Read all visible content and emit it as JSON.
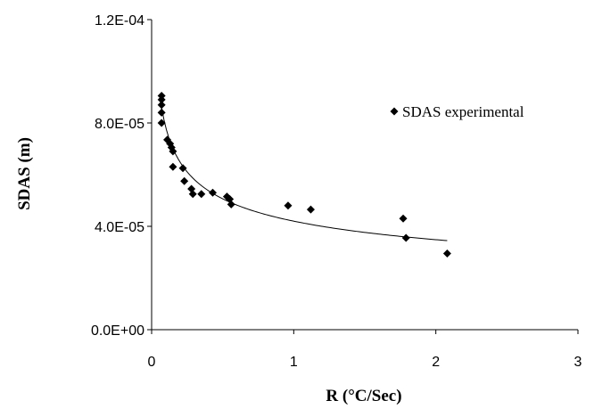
{
  "chart_data": {
    "type": "scatter",
    "xlabel": "R (°C/Sec)",
    "ylabel": "SDAS (m)",
    "xlim": [
      0,
      3
    ],
    "ylim": [
      0,
      0.00012
    ],
    "x_ticks": [
      "0",
      "1",
      "2",
      "3"
    ],
    "y_ticks": [
      "0.0E+00",
      "4.0E-05",
      "8.0E-05",
      "1.2E-04"
    ],
    "grid": false,
    "legend_position": "top-right",
    "colors": {
      "marker": "#000000",
      "trendline": "#000000",
      "axis": "#000000"
    },
    "series": [
      {
        "name": "SDAS experimental",
        "marker": "diamond",
        "points": [
          {
            "x": 0.07,
            "y": 9.05e-05
          },
          {
            "x": 0.07,
            "y": 8.9e-05
          },
          {
            "x": 0.07,
            "y": 8.7e-05
          },
          {
            "x": 0.07,
            "y": 8.4e-05
          },
          {
            "x": 0.07,
            "y": 8e-05
          },
          {
            "x": 0.11,
            "y": 7.35e-05
          },
          {
            "x": 0.13,
            "y": 7.2e-05
          },
          {
            "x": 0.14,
            "y": 7.05e-05
          },
          {
            "x": 0.15,
            "y": 6.9e-05
          },
          {
            "x": 0.15,
            "y": 6.3e-05
          },
          {
            "x": 0.22,
            "y": 6.25e-05
          },
          {
            "x": 0.23,
            "y": 5.75e-05
          },
          {
            "x": 0.28,
            "y": 5.45e-05
          },
          {
            "x": 0.29,
            "y": 5.25e-05
          },
          {
            "x": 0.35,
            "y": 5.25e-05
          },
          {
            "x": 0.43,
            "y": 5.3e-05
          },
          {
            "x": 0.53,
            "y": 5.15e-05
          },
          {
            "x": 0.55,
            "y": 5.05e-05
          },
          {
            "x": 0.56,
            "y": 4.85e-05
          },
          {
            "x": 0.96,
            "y": 4.8e-05
          },
          {
            "x": 1.12,
            "y": 4.65e-05
          },
          {
            "x": 1.77,
            "y": 4.3e-05
          },
          {
            "x": 1.79,
            "y": 3.55e-05
          },
          {
            "x": 2.08,
            "y": 2.95e-05
          }
        ]
      }
    ],
    "trendline": {
      "type": "power",
      "coefficient": 4.2e-05,
      "exponent": -0.27,
      "x_range": [
        0.07,
        2.08
      ]
    }
  }
}
